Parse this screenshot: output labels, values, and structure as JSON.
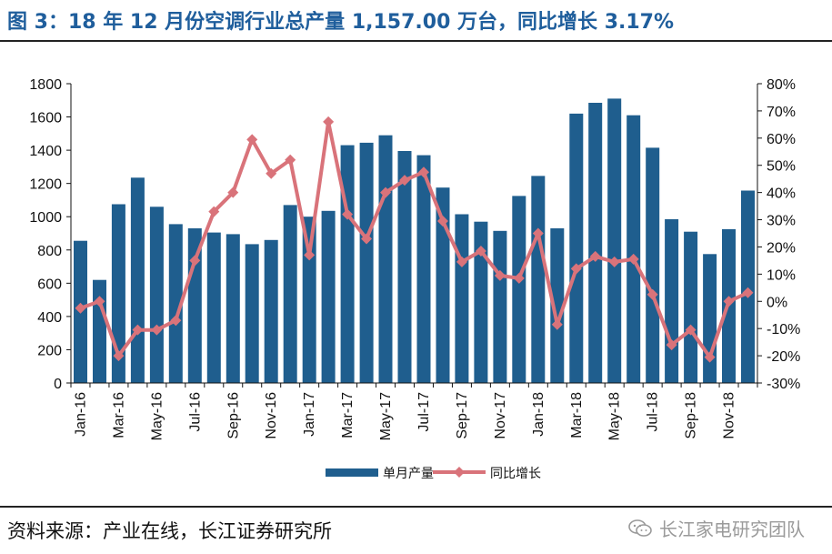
{
  "header": {
    "title": "图 3：18 年 12 月份空调行业总产量 1,157.00 万台，同比增长 3.17%"
  },
  "footer": {
    "source": "资料来源：产业在线，长江证券研究所",
    "watermark": "长江家电研究团队",
    "watermark_icon": "wechat-icon"
  },
  "chart_data": {
    "type": "bar",
    "title": "",
    "categories": [
      "Jan-16",
      "Feb-16",
      "Mar-16",
      "Apr-16",
      "May-16",
      "Jun-16",
      "Jul-16",
      "Aug-16",
      "Sep-16",
      "Oct-16",
      "Nov-16",
      "Dec-16",
      "Jan-17",
      "Feb-17",
      "Mar-17",
      "Apr-17",
      "May-17",
      "Jun-17",
      "Jul-17",
      "Aug-17",
      "Sep-17",
      "Oct-17",
      "Nov-17",
      "Dec-17",
      "Jan-18",
      "Feb-18",
      "Mar-18",
      "Apr-18",
      "May-18",
      "Jun-18",
      "Jul-18",
      "Aug-18",
      "Sep-18",
      "Oct-18",
      "Nov-18",
      "Dec-18"
    ],
    "xtick_labels": [
      "Jan-16",
      "Mar-16",
      "May-16",
      "Jul-16",
      "Sep-16",
      "Nov-16",
      "Jan-17",
      "Mar-17",
      "May-17",
      "Jul-17",
      "Sep-17",
      "Nov-17",
      "Jan-18",
      "Mar-18",
      "May-18",
      "Jul-18",
      "Sep-18",
      "Nov-18"
    ],
    "series": [
      {
        "name": "单月产量",
        "axis": "left",
        "kind": "bar",
        "color": "#1f5e8e",
        "values": [
          855,
          620,
          1075,
          1235,
          1060,
          955,
          930,
          905,
          895,
          835,
          860,
          1070,
          1000,
          1035,
          1430,
          1445,
          1490,
          1395,
          1370,
          1175,
          1015,
          970,
          915,
          1125,
          1245,
          930,
          1620,
          1685,
          1710,
          1610,
          1415,
          985,
          910,
          775,
          925,
          1157
        ]
      },
      {
        "name": "同比增长",
        "axis": "right",
        "kind": "line",
        "color": "#d9737a",
        "values": [
          -2.5,
          0,
          -20,
          -10.5,
          -10.5,
          -7,
          15,
          33,
          40,
          59.5,
          47,
          52,
          17,
          66,
          32,
          23,
          40,
          44.5,
          47.5,
          29.5,
          14.5,
          18.5,
          9.5,
          8.5,
          25,
          -8.5,
          12,
          16.5,
          14.5,
          15.5,
          2.5,
          -16,
          -10.5,
          -20.5,
          0,
          3.17
        ]
      }
    ],
    "y_left": {
      "lim": [
        0,
        1800
      ],
      "ticks": [
        0,
        200,
        400,
        600,
        800,
        1000,
        1200,
        1400,
        1600,
        1800
      ]
    },
    "y_right": {
      "lim": [
        -30,
        80
      ],
      "ticks": [
        -30,
        -20,
        -10,
        0,
        10,
        20,
        30,
        40,
        50,
        60,
        70,
        80
      ],
      "unit": "%"
    },
    "grid": false,
    "legend": "bottom"
  }
}
